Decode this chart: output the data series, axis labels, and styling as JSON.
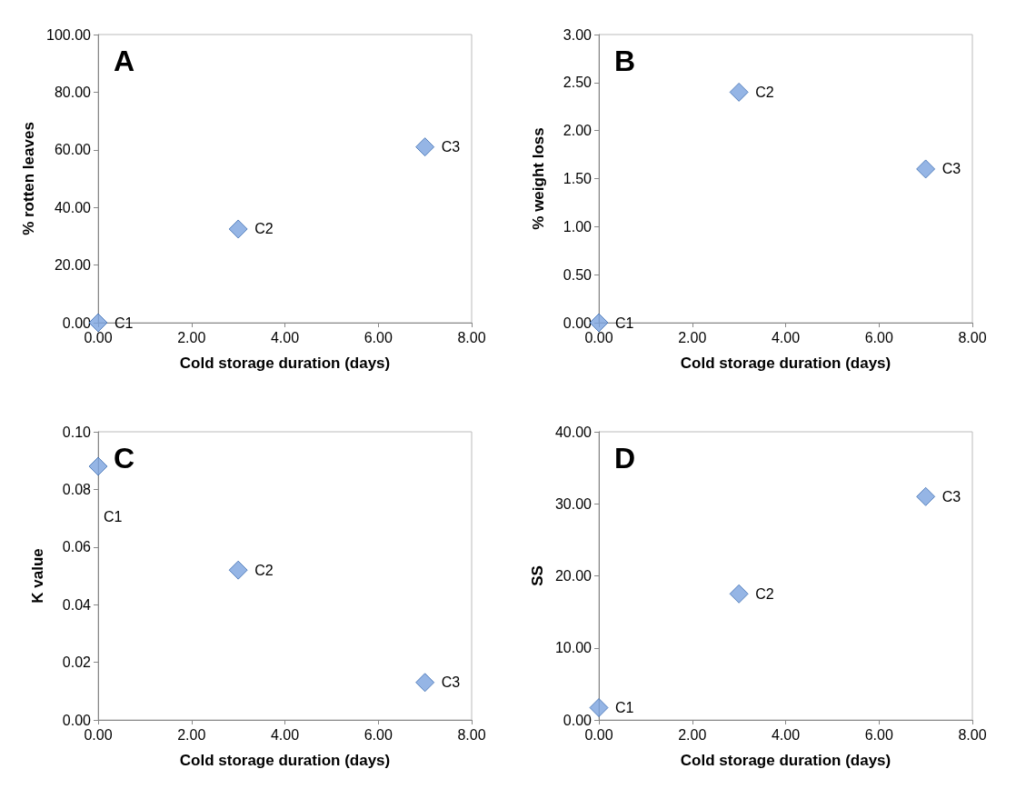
{
  "chart_data": [
    {
      "type": "scatter",
      "xlabel": "Cold storage duration (days)",
      "ylabel": "% rotten leaves",
      "annotations": [
        "A",
        {
          "text": "C1",
          "x": 0,
          "y": 0
        },
        {
          "text": "C2",
          "x": 3,
          "y": 32.5
        },
        {
          "text": "C3",
          "x": 7,
          "y": 61
        }
      ],
      "x": [
        0,
        3,
        7
      ],
      "values": [
        0,
        32.5,
        61
      ],
      "color": "#7aa3de",
      "marker": "diamond",
      "xlim": [
        0,
        8
      ],
      "xticks": [
        {
          "value": 0,
          "label": "0.00"
        },
        {
          "value": 2,
          "label": "2.00"
        },
        {
          "value": 4,
          "label": "4.00"
        },
        {
          "value": 6,
          "label": "6.00"
        },
        {
          "value": 8,
          "label": "8.00"
        }
      ],
      "ylim": [
        0,
        100
      ],
      "yticks": [
        {
          "value": 0,
          "label": "0.00"
        },
        {
          "value": 20,
          "label": "20.00"
        },
        {
          "value": 40,
          "label": "40.00"
        },
        {
          "value": 60,
          "label": "60.00"
        },
        {
          "value": 80,
          "label": "80.00"
        },
        {
          "value": 100,
          "label": "100.00"
        }
      ],
      "grid": false
    },
    {
      "type": "scatter",
      "xlabel": "Cold storage duration (days)",
      "ylabel": "% weight loss",
      "annotations": [
        "B",
        {
          "text": "C1",
          "x": 0,
          "y": 0
        },
        {
          "text": "C2",
          "x": 3,
          "y": 2.4
        },
        {
          "text": "C3",
          "x": 7,
          "y": 1.6
        }
      ],
      "x": [
        0,
        3,
        7
      ],
      "values": [
        0,
        2.4,
        1.6
      ],
      "color": "#7aa3de",
      "marker": "diamond",
      "xlim": [
        0,
        8
      ],
      "xticks": [
        {
          "value": 0,
          "label": "0.00"
        },
        {
          "value": 2,
          "label": "2.00"
        },
        {
          "value": 4,
          "label": "4.00"
        },
        {
          "value": 6,
          "label": "6.00"
        },
        {
          "value": 8,
          "label": "8.00"
        }
      ],
      "ylim": [
        0,
        3
      ],
      "yticks": [
        {
          "value": 0,
          "label": "0.00"
        },
        {
          "value": 0.5,
          "label": "0.50"
        },
        {
          "value": 1,
          "label": "1.00"
        },
        {
          "value": 1.5,
          "label": "1.50"
        },
        {
          "value": 2,
          "label": "2.00"
        },
        {
          "value": 2.5,
          "label": "2.50"
        },
        {
          "value": 3,
          "label": "3.00"
        }
      ],
      "grid": false
    },
    {
      "type": "scatter",
      "xlabel": "Cold storage duration (days)",
      "ylabel": "K value",
      "annotations": [
        "C",
        {
          "text": "C1",
          "x": 0,
          "y": 0.088
        },
        {
          "text": "C2",
          "x": 3,
          "y": 0.052
        },
        {
          "text": "C3",
          "x": 7,
          "y": 0.013
        }
      ],
      "x": [
        0,
        3,
        7
      ],
      "values": [
        0.088,
        0.052,
        0.013
      ],
      "color": "#7aa3de",
      "marker": "diamond",
      "xlim": [
        0,
        8
      ],
      "xticks": [
        {
          "value": 0,
          "label": "0.00"
        },
        {
          "value": 2,
          "label": "2.00"
        },
        {
          "value": 4,
          "label": "4.00"
        },
        {
          "value": 6,
          "label": "6.00"
        },
        {
          "value": 8,
          "label": "8.00"
        }
      ],
      "ylim": [
        0,
        0.1
      ],
      "yticks": [
        {
          "value": 0,
          "label": "0.00"
        },
        {
          "value": 0.02,
          "label": "0.02"
        },
        {
          "value": 0.04,
          "label": "0.04"
        },
        {
          "value": 0.06,
          "label": "0.06"
        },
        {
          "value": 0.08,
          "label": "0.08"
        },
        {
          "value": 0.1,
          "label": "0.10"
        }
      ],
      "grid": false
    },
    {
      "type": "scatter",
      "xlabel": "Cold storage duration (days)",
      "ylabel": "SS",
      "annotations": [
        "D",
        {
          "text": "C1",
          "x": 0,
          "y": 1.7
        },
        {
          "text": "C2",
          "x": 3,
          "y": 17.5
        },
        {
          "text": "C3",
          "x": 7,
          "y": 31
        }
      ],
      "x": [
        0,
        3,
        7
      ],
      "values": [
        1.7,
        17.5,
        31
      ],
      "color": "#7aa3de",
      "marker": "diamond",
      "xlim": [
        0,
        8
      ],
      "xticks": [
        {
          "value": 0,
          "label": "0.00"
        },
        {
          "value": 2,
          "label": "2.00"
        },
        {
          "value": 4,
          "label": "4.00"
        },
        {
          "value": 6,
          "label": "6.00"
        },
        {
          "value": 8,
          "label": "8.00"
        }
      ],
      "ylim": [
        0,
        40
      ],
      "yticks": [
        {
          "value": 0,
          "label": "0.00"
        },
        {
          "value": 10,
          "label": "10.00"
        },
        {
          "value": 20,
          "label": "20.00"
        },
        {
          "value": 30,
          "label": "30.00"
        },
        {
          "value": 40,
          "label": "40.00"
        }
      ],
      "grid": false
    }
  ]
}
